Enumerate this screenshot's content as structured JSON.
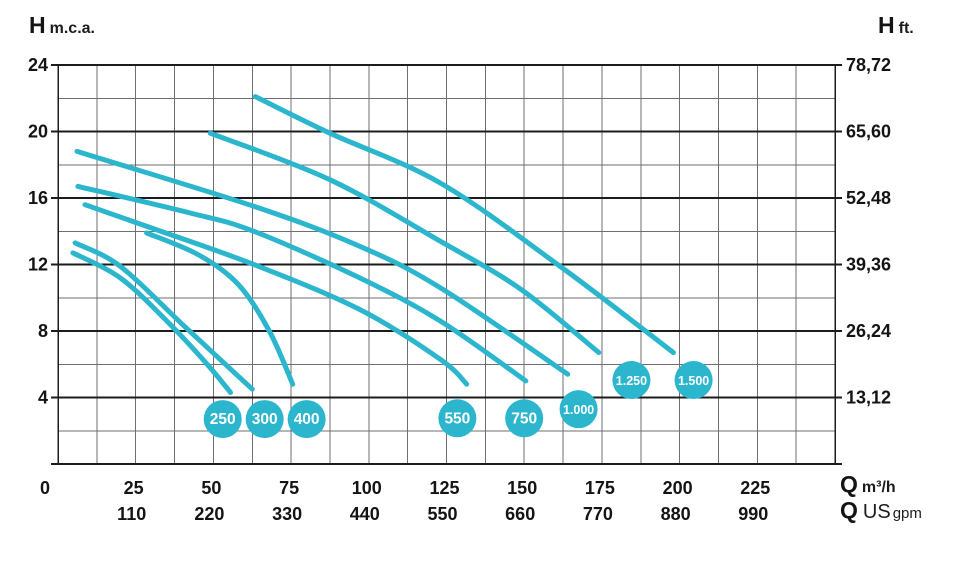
{
  "header": {
    "left_axis": {
      "symbol": "H",
      "unit": "m.c.a."
    },
    "right_axis": {
      "symbol": "H",
      "unit": "ft."
    }
  },
  "footer": {
    "flow_axis_metric": {
      "symbol": "Q",
      "unit": "m³/h"
    },
    "flow_axis_us": {
      "symbol": "Q",
      "unit_main": "US",
      "unit_sub": "gpm"
    }
  },
  "colors": {
    "curve": "#2cb6ce",
    "badge_fill": "#2cb6ce",
    "badge_text": "#ffffff",
    "grid_minor": "#6f6f6f",
    "grid_major": "#1c1c1c",
    "text": "#141414",
    "background": "#ffffff"
  },
  "chart_data": {
    "type": "line",
    "grid": "on",
    "x_axis": {
      "label": "Q m³/h",
      "min": 0,
      "max": 250,
      "grid_step": 12.5,
      "ticks": [
        0,
        25,
        50,
        75,
        100,
        125,
        150,
        175,
        200,
        225
      ]
    },
    "x_axis_secondary": {
      "label": "Q US gpm",
      "ticks": [
        110,
        220,
        330,
        440,
        550,
        660,
        770,
        880,
        990
      ],
      "tick_positions_q_m3h": [
        25,
        50,
        75,
        100,
        125,
        150,
        175,
        200,
        225
      ]
    },
    "y_axis": {
      "label": "H m.c.a.",
      "min": 0,
      "max": 24,
      "grid_step": 2,
      "major_step": 4,
      "ticks": [
        24,
        20,
        16,
        12,
        8,
        4
      ]
    },
    "y_axis_secondary": {
      "label": "H ft.",
      "ticks": [
        "78,72",
        "65,60",
        "52,48",
        "39,36",
        "26,24",
        "13,12"
      ]
    },
    "series": [
      {
        "name": "250",
        "points": [
          [
            4.8,
            12.7
          ],
          [
            20,
            11.2
          ],
          [
            35,
            8.6
          ],
          [
            48,
            6.0
          ],
          [
            55.5,
            4.3
          ]
        ],
        "badge": {
          "q": 53,
          "h": 2.7
        }
      },
      {
        "name": "300",
        "points": [
          [
            5.5,
            13.3
          ],
          [
            20,
            11.9
          ],
          [
            40,
            8.4
          ],
          [
            55,
            5.8
          ],
          [
            62.5,
            4.5
          ]
        ],
        "badge": {
          "q": 66.5,
          "h": 2.7
        }
      },
      {
        "name": "400",
        "points": [
          [
            28.5,
            13.9
          ],
          [
            45,
            12.6
          ],
          [
            58,
            10.8
          ],
          [
            68,
            8.0
          ],
          [
            75.5,
            4.8
          ]
        ],
        "badge": {
          "q": 80,
          "h": 2.7
        }
      },
      {
        "name": "550",
        "points": [
          [
            8.7,
            15.6
          ],
          [
            30,
            14.2
          ],
          [
            63,
            12.0
          ],
          [
            97,
            9.3
          ],
          [
            123,
            6.3
          ],
          [
            131.5,
            4.8
          ]
        ],
        "badge": {
          "q": 128.5,
          "h": 2.75
        }
      },
      {
        "name": "750",
        "points": [
          [
            6.4,
            16.7
          ],
          [
            42.5,
            15.1
          ],
          [
            63,
            14.0
          ],
          [
            97,
            11.2
          ],
          [
            123,
            8.6
          ],
          [
            150.5,
            5.0
          ]
        ],
        "badge": {
          "q": 150,
          "h": 2.75
        }
      },
      {
        "name": "1.000",
        "points": [
          [
            6.1,
            18.8
          ],
          [
            63,
            15.5
          ],
          [
            97,
            13.1
          ],
          [
            123,
            10.6
          ],
          [
            164,
            5.4
          ]
        ],
        "badge": {
          "q": 167.5,
          "h": 3.3
        }
      },
      {
        "name": "1.250",
        "points": [
          [
            49,
            19.9
          ],
          [
            87.5,
            17.1
          ],
          [
            123,
            13.4
          ],
          [
            149,
            10.5
          ],
          [
            174,
            6.7
          ]
        ],
        "badge": {
          "q": 184.5,
          "h": 5.05
        }
      },
      {
        "name": "1.500",
        "points": [
          [
            63.5,
            22.1
          ],
          [
            87.5,
            19.9
          ],
          [
            123,
            16.9
          ],
          [
            161.5,
            11.9
          ],
          [
            198,
            6.7
          ]
        ],
        "badge": {
          "q": 204.5,
          "h": 5.05
        }
      }
    ]
  }
}
